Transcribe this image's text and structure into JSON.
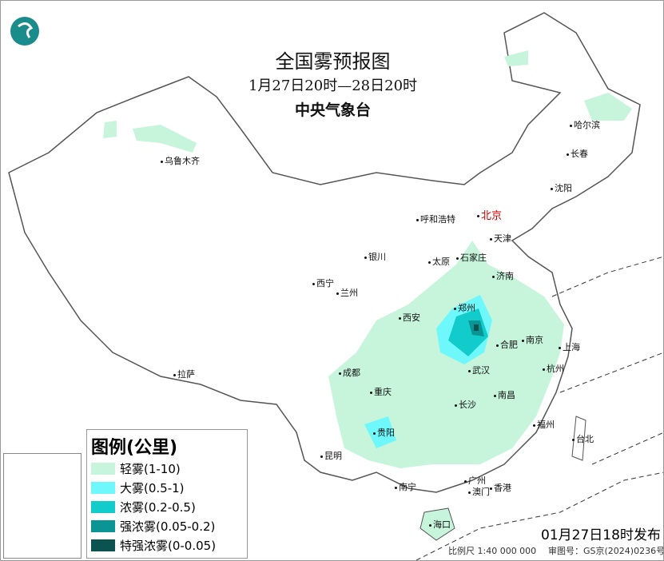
{
  "title": "全国雾预报图",
  "period": "1月27日20时—28日20时",
  "issuer": "中央气象台",
  "logo_icon": "cma-logo-icon",
  "legend": {
    "title": "图例(公里)",
    "items": [
      {
        "label": "轻雾(1-10)",
        "color": "#c6f5dc"
      },
      {
        "label": "大雾(0.5-1)",
        "color": "#6ef8fb"
      },
      {
        "label": "浓雾(0.2-0.5)",
        "color": "#12cccc"
      },
      {
        "label": "强浓雾(0.05-0.2)",
        "color": "#0a9493"
      },
      {
        "label": "特强浓雾(0-0.05)",
        "color": "#0b5350"
      }
    ]
  },
  "cities": [
    {
      "name": "乌鲁木齐"
    },
    {
      "name": "哈尔滨"
    },
    {
      "name": "长春"
    },
    {
      "name": "沈阳"
    },
    {
      "name": "北京"
    },
    {
      "name": "天津"
    },
    {
      "name": "呼和浩特"
    },
    {
      "name": "银川"
    },
    {
      "name": "太原"
    },
    {
      "name": "石家庄"
    },
    {
      "name": "济南"
    },
    {
      "name": "西宁"
    },
    {
      "name": "兰州"
    },
    {
      "name": "西安"
    },
    {
      "name": "郑州"
    },
    {
      "name": "合肥"
    },
    {
      "name": "南京"
    },
    {
      "name": "上海"
    },
    {
      "name": "杭州"
    },
    {
      "name": "武汉"
    },
    {
      "name": "成都"
    },
    {
      "name": "重庆"
    },
    {
      "name": "长沙"
    },
    {
      "name": "南昌"
    },
    {
      "name": "拉萨"
    },
    {
      "name": "贵阳"
    },
    {
      "name": "福州"
    },
    {
      "name": "台北"
    },
    {
      "name": "昆明"
    },
    {
      "name": "南宁"
    },
    {
      "name": "广州"
    },
    {
      "name": "澳门"
    },
    {
      "name": "香港"
    },
    {
      "name": "海口"
    }
  ],
  "release": "01月27日18时发布",
  "scale": "比例尺 1:40 000 000",
  "review": "审图号：GS京(2024)0236号",
  "capital_color": "#cc0000"
}
